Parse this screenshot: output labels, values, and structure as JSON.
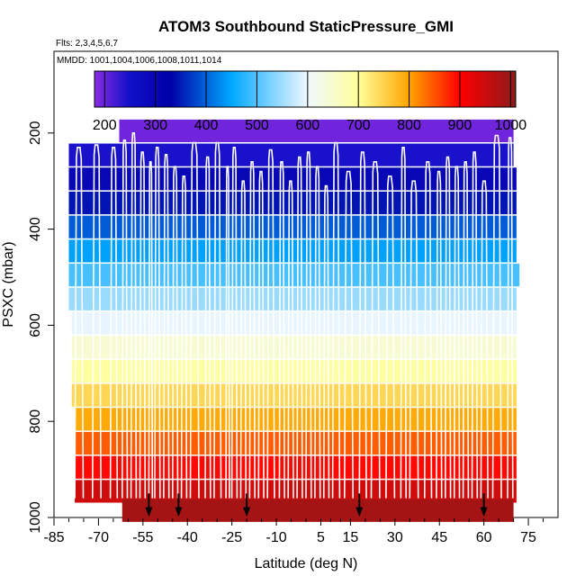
{
  "chart_data": {
    "type": "heatmap",
    "title": "ATOM3 Southbound StaticPressure_GMI",
    "subtitle_flights": "Flts: 2,3,4,5,6,7",
    "subtitle_dates": "MMDD: 1001,1004,1006,1008,1011,1014",
    "xlabel": "Latitude (deg N)",
    "ylabel": "PSXC (mbar)",
    "xlim": [
      -85,
      85
    ],
    "ylim": [
      1000,
      30
    ],
    "x_ticks": [
      -85,
      -70,
      -55,
      -40,
      -25,
      -10,
      5,
      15,
      30,
      45,
      60,
      75
    ],
    "x_tick_labels": [
      "-85",
      "-70",
      "-55",
      "-40",
      "-25",
      "-10",
      "5",
      "15",
      "30",
      "45",
      "60",
      "75"
    ],
    "y_ticks": [
      200,
      400,
      600,
      800,
      1000
    ],
    "y_tick_labels": [
      "200",
      "400",
      "600",
      "800",
      "1000"
    ],
    "colorbar": {
      "ticks": [
        200,
        300,
        400,
        500,
        600,
        700,
        800,
        900,
        1000
      ],
      "tick_labels": [
        "200",
        "300",
        "400",
        "500",
        "600",
        "700",
        "800",
        "900",
        "1000"
      ],
      "range": [
        180,
        1010
      ],
      "stops": [
        {
          "v": 180,
          "c": "#8a2be2"
        },
        {
          "v": 250,
          "c": "#1010c8"
        },
        {
          "v": 330,
          "c": "#0000a8"
        },
        {
          "v": 450,
          "c": "#00a8ff"
        },
        {
          "v": 600,
          "c": "#f0f8ff"
        },
        {
          "v": 700,
          "c": "#ffff9a"
        },
        {
          "v": 800,
          "c": "#ffa500"
        },
        {
          "v": 900,
          "c": "#ff0000"
        },
        {
          "v": 1010,
          "c": "#8b1a1a"
        }
      ]
    },
    "bands": [
      {
        "p": 195,
        "lat_min": -63,
        "lat_max": 70
      },
      {
        "p": 245,
        "lat_min": -80,
        "lat_max": 70
      },
      {
        "p": 295,
        "lat_min": -80,
        "lat_max": 71
      },
      {
        "p": 345,
        "lat_min": -80,
        "lat_max": 71
      },
      {
        "p": 395,
        "lat_min": -80,
        "lat_max": 71
      },
      {
        "p": 445,
        "lat_min": -80,
        "lat_max": 71
      },
      {
        "p": 495,
        "lat_min": -80,
        "lat_max": 72
      },
      {
        "p": 545,
        "lat_min": -80,
        "lat_max": 71
      },
      {
        "p": 595,
        "lat_min": -79,
        "lat_max": 71
      },
      {
        "p": 645,
        "lat_min": -79,
        "lat_max": 71
      },
      {
        "p": 695,
        "lat_min": -79,
        "lat_max": 71
      },
      {
        "p": 745,
        "lat_min": -79,
        "lat_max": 71
      },
      {
        "p": 795,
        "lat_min": -78,
        "lat_max": 71
      },
      {
        "p": 845,
        "lat_min": -78,
        "lat_max": 71
      },
      {
        "p": 895,
        "lat_min": -78,
        "lat_max": 71
      },
      {
        "p": 945,
        "lat_min": -78,
        "lat_max": 71
      },
      {
        "p": 985,
        "lat_min": -62,
        "lat_max": 70
      }
    ],
    "arrows_lat": [
      -53,
      -43,
      -20,
      18,
      60
    ],
    "profiles_lat": [
      -78,
      -72,
      -66,
      -62,
      -59,
      -56,
      -53,
      -51,
      -48,
      -45,
      -42,
      -39,
      -34,
      -31,
      -27,
      -25,
      -22,
      -19,
      -16,
      -13,
      -9,
      -6,
      -3,
      0,
      3,
      6,
      9,
      13,
      18,
      22,
      27,
      32,
      35,
      40,
      44,
      47,
      50,
      53,
      56,
      59,
      63,
      68
    ],
    "profiles_top": [
      230,
      225,
      230,
      215,
      200,
      240,
      260,
      230,
      245,
      270,
      290,
      220,
      250,
      220,
      270,
      230,
      300,
      260,
      280,
      235,
      260,
      300,
      250,
      240,
      270,
      310,
      220,
      280,
      240,
      260,
      290,
      230,
      300,
      260,
      280,
      250,
      270,
      260,
      240,
      300,
      205,
      210
    ]
  }
}
